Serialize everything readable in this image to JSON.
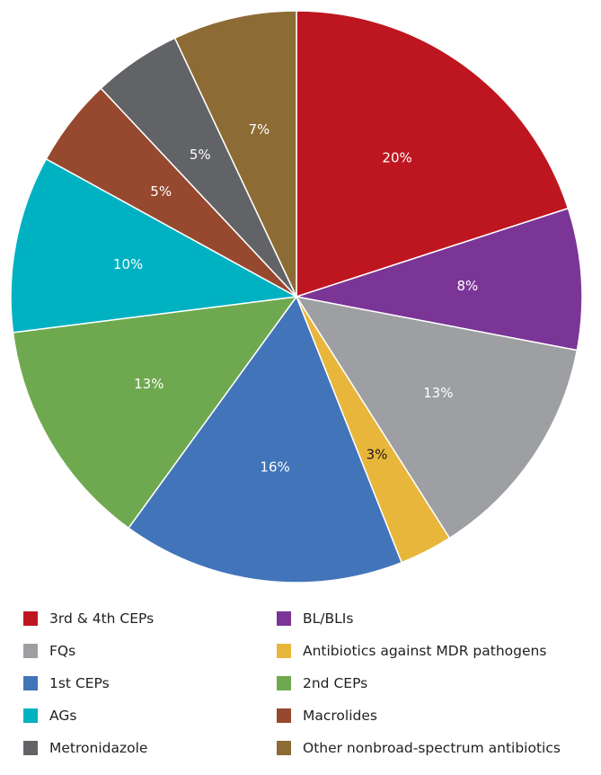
{
  "chart_data": {
    "type": "pie",
    "title": "",
    "legend_position": "bottom",
    "slices": [
      {
        "name": "3rd & 4th CEPs",
        "value": 20,
        "label": "20%",
        "color": "#be1620"
      },
      {
        "name": "BL/BLIs",
        "value": 8,
        "label": "8%",
        "color": "#7b3596"
      },
      {
        "name": "FQs",
        "value": 13,
        "label": "13%",
        "color": "#9d9fa2"
      },
      {
        "name": "Antibiotics against MDR pathogens",
        "value": 3,
        "label": "3%",
        "color": "#e8b63a"
      },
      {
        "name": "1st CEPs",
        "value": 16,
        "label": "16%",
        "color": "#4274ba"
      },
      {
        "name": "2nd CEPs",
        "value": 13,
        "label": "13%",
        "color": "#6fa94f"
      },
      {
        "name": "AGs",
        "value": 10,
        "label": "10%",
        "color": "#00b1c1"
      },
      {
        "name": "Macrolides",
        "value": 5,
        "label": "5%",
        "color": "#96492e"
      },
      {
        "name": "Metronidazole",
        "value": 5,
        "label": "5%",
        "color": "#626366"
      },
      {
        "name": "Other nonbroad-spectrum antibiotics",
        "value": 7,
        "label": "7%",
        "color": "#8c6c34"
      }
    ],
    "legend": [
      {
        "name": "3rd & 4th CEPs",
        "color": "#be1620"
      },
      {
        "name": "BL/BLIs",
        "color": "#7b3596"
      },
      {
        "name": "FQs",
        "color": "#9d9fa2"
      },
      {
        "name": "Antibiotics against MDR pathogens",
        "color": "#e8b63a"
      },
      {
        "name": "1st CEPs",
        "color": "#4274ba"
      },
      {
        "name": "2nd CEPs",
        "color": "#6fa94f"
      },
      {
        "name": "AGs",
        "color": "#00b1c1"
      },
      {
        "name": "Macrolides",
        "color": "#96492e"
      },
      {
        "name": "Metronidazole",
        "color": "#626366"
      },
      {
        "name": "Other nonbroad-spectrum antibiotics",
        "color": "#8c6c34"
      }
    ]
  }
}
